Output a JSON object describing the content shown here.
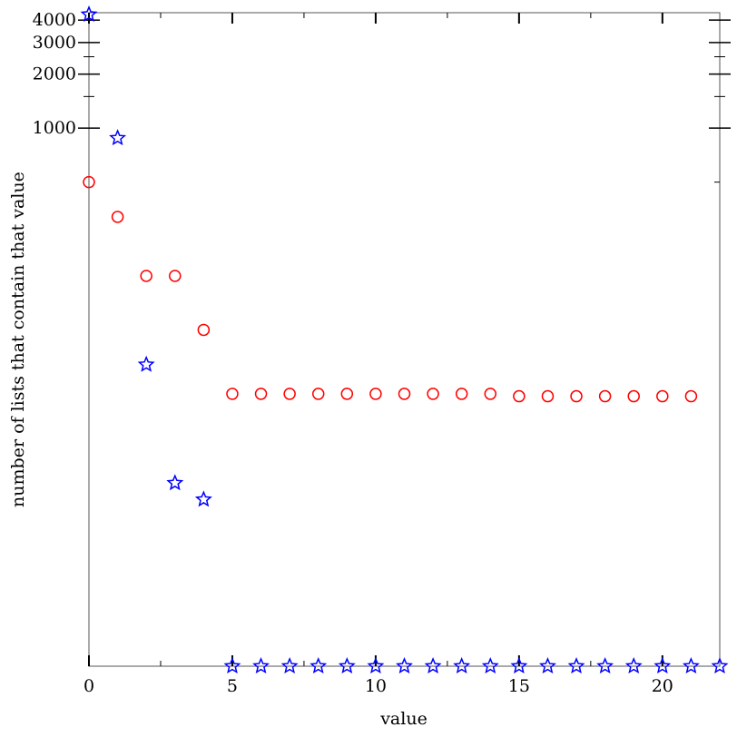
{
  "chart_data": {
    "type": "scatter",
    "xlabel": "value",
    "ylabel": "number of lists that contain that value",
    "xlim": [
      0,
      22
    ],
    "ylim_log_floor": 1,
    "ylim_top": 4400,
    "y_scale": "log",
    "x_ticks_major": [
      0,
      5,
      10,
      15,
      20
    ],
    "x_ticks_minor": [
      2.5,
      7.5,
      12.5,
      17.5
    ],
    "y_ticks_labeled": [
      1000,
      2000,
      3000,
      4000
    ],
    "y_ticks_minor": [
      1500,
      2500
    ],
    "grid": false,
    "legend": "none",
    "series": [
      {
        "marker": "circle",
        "color": "#ff0000",
        "x": [
          0,
          1,
          2,
          3,
          4,
          5,
          6,
          7,
          8,
          9,
          10,
          11,
          12,
          13,
          14,
          15,
          16,
          17,
          18,
          19,
          20,
          21
        ],
        "y": [
          500,
          320,
          150,
          150,
          75,
          33,
          33,
          33,
          33,
          33,
          33,
          33,
          33,
          33,
          33,
          32,
          32,
          32,
          32,
          32,
          32,
          32
        ]
      },
      {
        "marker": "star",
        "color": "#0000ff",
        "x": [
          0,
          1,
          2,
          3,
          4,
          5,
          6,
          7,
          8,
          9,
          10,
          11,
          12,
          13,
          14,
          15,
          16,
          17,
          18,
          19,
          20,
          21,
          22
        ],
        "y": [
          4300,
          880,
          48,
          10.5,
          8.5,
          1,
          1,
          1,
          1,
          1,
          1,
          1,
          1,
          1,
          1,
          1,
          1,
          1,
          1,
          1,
          1,
          1,
          1
        ]
      }
    ]
  }
}
